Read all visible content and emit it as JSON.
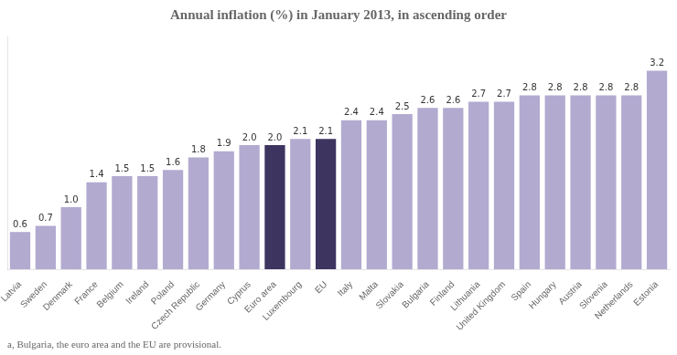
{
  "chart_data": {
    "type": "bar",
    "title": "Annual inflation (%) in January 2013, in ascending order",
    "annotations": [
      "a, Bulgaria, the euro area and the EU are provisional."
    ],
    "categories": [
      "Latvia",
      "Sweden",
      "Denmark",
      "France",
      "Belgium",
      "Ireland",
      "Poland",
      "Czech Republic",
      "Germany",
      "Cyprus",
      "Euro area",
      "Luxembourg",
      "EU",
      "Italy",
      "Malta",
      "Slovakia",
      "Bulgaria",
      "Finland",
      "Lithuania",
      "United Kingdom",
      "Spain",
      "Hungary",
      "Austria",
      "Slovenia",
      "Netherlands",
      "Estonia"
    ],
    "values": [
      0.6,
      0.7,
      1.0,
      1.4,
      1.5,
      1.5,
      1.6,
      1.8,
      1.9,
      2.0,
      2.0,
      2.1,
      2.1,
      2.4,
      2.4,
      2.5,
      2.6,
      2.6,
      2.7,
      2.7,
      2.8,
      2.8,
      2.8,
      2.8,
      2.8,
      3.2
    ],
    "value_labels": [
      "0.6",
      "0.7",
      "1.0",
      "1.4",
      "1.5",
      "1.5",
      "1.6",
      "1.8",
      "1.9",
      "2.0",
      "2.0",
      "2.1",
      "2.1",
      "2.4",
      "2.4",
      "2.5",
      "2.6",
      "2.6",
      "2.7",
      "2.7",
      "2.8",
      "2.8",
      "2.8",
      "2.8",
      "2.8",
      "3.2"
    ],
    "colors": [
      "#b3aad0",
      "#b3aad0",
      "#b3aad0",
      "#b3aad0",
      "#b3aad0",
      "#b3aad0",
      "#b3aad0",
      "#b3aad0",
      "#b3aad0",
      "#b3aad0",
      "#3d3460",
      "#b3aad0",
      "#3d3460",
      "#b3aad0",
      "#b3aad0",
      "#b3aad0",
      "#b3aad0",
      "#b3aad0",
      "#b3aad0",
      "#b3aad0",
      "#b3aad0",
      "#b3aad0",
      "#b3aad0",
      "#b3aad0",
      "#b3aad0",
      "#b3aad0"
    ],
    "ylim": [
      0,
      3.75
    ],
    "data_labels": true,
    "tick_labels": "x",
    "grid": false
  }
}
